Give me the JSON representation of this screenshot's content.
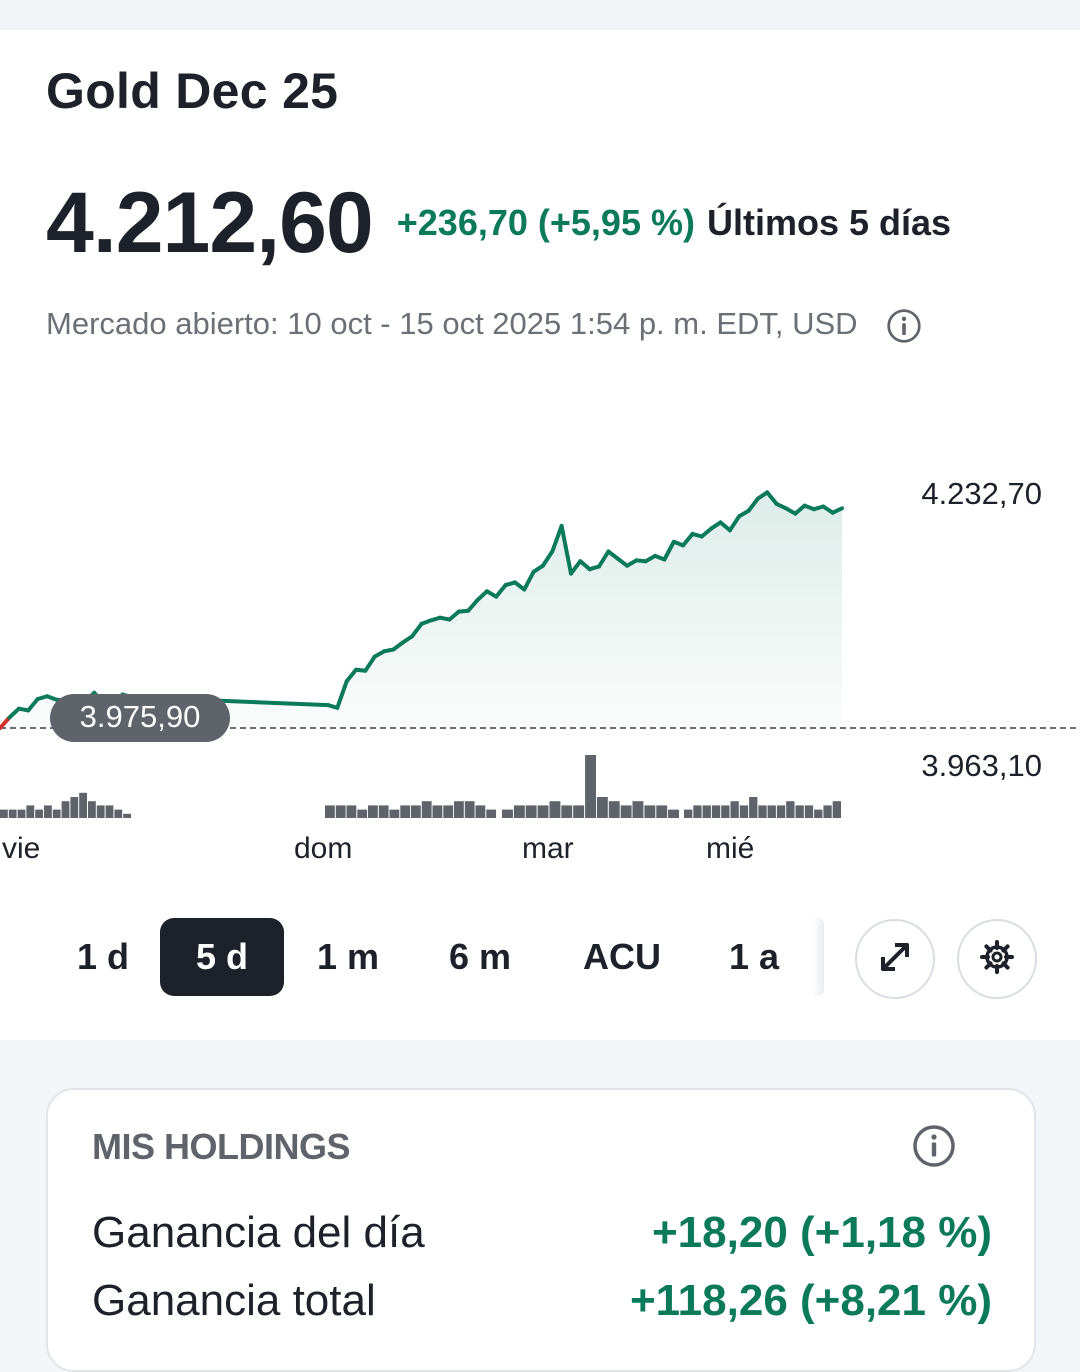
{
  "title": "Gold Dec 25",
  "price": "4.212,60",
  "change": "+236,70 (+5,95 %)",
  "period_label": "Últimos 5 días",
  "market_status": "Mercado abierto: 10 oct - 15 oct 2025 1:54 p. m. EDT, USD",
  "colors": {
    "positive": "#0b7a5b",
    "negative": "#d0312d",
    "dark": "#1d2129",
    "muted": "#6b7077"
  },
  "chart_data": {
    "type": "line",
    "y_high_label": "4.232,70",
    "y_low_label": "3.963,10",
    "previous_close_label": "3.975,90",
    "x_tick_labels": [
      "vie",
      "dom",
      "mar",
      "mié"
    ],
    "series": [
      {
        "values": [
          3963,
          3975,
          3985,
          3983,
          3996,
          3999,
          3995,
          3994,
          3998,
          3993,
          4003,
          3991,
          3990,
          4001,
          3998,
          3989,
          3986,
          4016,
          4029,
          4028,
          4044,
          4050,
          4052,
          4060,
          4067,
          4081,
          4085,
          4088,
          4086,
          4095,
          4096,
          4108,
          4118,
          4112,
          4125,
          4128,
          4120,
          4140,
          4147,
          4163,
          4192,
          4138,
          4152,
          4143,
          4146,
          4163,
          4155,
          4147,
          4153,
          4152,
          4158,
          4154,
          4174,
          4170,
          4183,
          4180,
          4189,
          4196,
          4187,
          4203,
          4209,
          4223,
          4230,
          4217,
          4212,
          4206,
          4215,
          4211,
          4214,
          4207,
          4212
        ]
      }
    ],
    "volume": [
      2,
      2,
      2,
      3,
      2,
      3,
      2,
      4,
      5,
      6,
      4,
      3,
      3,
      2,
      1,
      3,
      3,
      3,
      2,
      3,
      3,
      2,
      3,
      3,
      4,
      3,
      3,
      4,
      4,
      3,
      2,
      2,
      3,
      3,
      3,
      4,
      3,
      3,
      15,
      5,
      4,
      3,
      4,
      3,
      3,
      2,
      2,
      3,
      3,
      3,
      3,
      4,
      3,
      5,
      3,
      3,
      3,
      4,
      3,
      3,
      2,
      3,
      4
    ]
  },
  "timeframes": [
    {
      "label": "1 d",
      "active": false
    },
    {
      "label": "5 d",
      "active": true
    },
    {
      "label": "1 m",
      "active": false
    },
    {
      "label": "6 m",
      "active": false
    },
    {
      "label": "ACU",
      "active": false
    },
    {
      "label": "1 a",
      "active": false
    }
  ],
  "holdings": {
    "title": "MIS HOLDINGS",
    "rows": [
      {
        "label": "Ganancia del día",
        "value": "+18,20 (+1,18 %)"
      },
      {
        "label": "Ganancia total",
        "value": "+118,26 (+8,21 %)"
      }
    ]
  }
}
